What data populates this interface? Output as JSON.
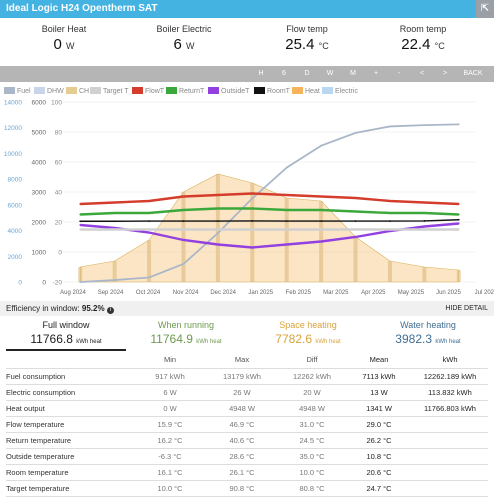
{
  "header": {
    "title": "Ideal Logic H24 Opentherm SAT",
    "expand_icon": "expand-icon"
  },
  "stats": [
    {
      "label": "Boiler Heat",
      "value": "0",
      "unit": "W"
    },
    {
      "label": "Boiler Electric",
      "value": "6",
      "unit": "W"
    },
    {
      "label": "Flow temp",
      "value": "25.4",
      "unit": "°C"
    },
    {
      "label": "Room temp",
      "value": "22.4",
      "unit": "°C"
    }
  ],
  "toolbar": [
    "H",
    "6",
    "D",
    "W",
    "M",
    "+",
    "-",
    "<",
    ">",
    "BACK"
  ],
  "legend": [
    {
      "label": "Fuel",
      "color": "#aab7c8"
    },
    {
      "label": "DHW",
      "color": "#c9d6ea"
    },
    {
      "label": "CH",
      "color": "#e5cd92"
    },
    {
      "label": "Target T",
      "color": "#d0d0d0"
    },
    {
      "label": "FlowT",
      "color": "#d43c2c"
    },
    {
      "label": "ReturnT",
      "color": "#3aa83a"
    },
    {
      "label": "OutsideT",
      "color": "#9240e0"
    },
    {
      "label": "RoomT",
      "color": "#111111"
    },
    {
      "label": "Heat",
      "color": "#f5b45a"
    },
    {
      "label": "Electric",
      "color": "#b9d7f0"
    }
  ],
  "chart_data": {
    "type": "line",
    "x_ticks": [
      "Aug 2024",
      "Sep 2024",
      "Oct 2024",
      "Nov 2024",
      "Dec 2024",
      "Jan 2025",
      "Feb 2025",
      "Mar 2025",
      "Apr 2025",
      "May 2025",
      "Jun 2025",
      "Jul 2025"
    ],
    "y_left_ticks": [
      "0",
      "2000",
      "4000",
      "6000",
      "8000",
      "10000",
      "12000",
      "14000"
    ],
    "y_mid_ticks": [
      "0",
      "1000",
      "2000",
      "3000",
      "4000",
      "5000",
      "6000"
    ],
    "y_right_ticks": [
      "-20",
      "0",
      "20",
      "40",
      "60",
      "80",
      "100"
    ],
    "y_left_range": [
      0,
      14000
    ],
    "y_mid_range": [
      0,
      6000
    ],
    "y_right_range": [
      -20,
      100
    ],
    "series": [
      {
        "name": "Fuel",
        "axis": "left",
        "values": [
          0,
          150,
          350,
          1400,
          3800,
          6500,
          8900,
          10600,
          11600,
          12100,
          12200,
          12262
        ]
      },
      {
        "name": "Heat",
        "axis": "mid",
        "values": [
          500,
          700,
          1400,
          3000,
          3600,
          3300,
          2800,
          2700,
          1500,
          700,
          500,
          400
        ]
      },
      {
        "name": "FlowT",
        "axis": "right",
        "values": [
          32,
          33,
          34,
          37,
          38,
          39,
          38,
          37,
          36,
          34,
          33,
          32
        ]
      },
      {
        "name": "ReturnT",
        "axis": "right",
        "values": [
          25,
          26,
          26,
          28,
          29,
          29,
          28,
          28,
          27,
          26,
          26,
          25
        ]
      },
      {
        "name": "OutsideT",
        "axis": "right",
        "values": [
          18,
          16,
          13,
          8,
          5,
          3,
          5,
          7,
          10,
          14,
          17,
          19
        ]
      },
      {
        "name": "RoomT",
        "axis": "right",
        "values": [
          20.5,
          20.5,
          20.6,
          20.6,
          20.6,
          20.7,
          20.6,
          20.6,
          20.6,
          20.6,
          20.7,
          21.5
        ]
      },
      {
        "name": "Target T",
        "axis": "right",
        "values": [
          15,
          15,
          15,
          15,
          15,
          15,
          15,
          15,
          15,
          15,
          15,
          15
        ]
      }
    ]
  },
  "efficiency": {
    "label": "Efficiency in window:",
    "value": "95.2%",
    "info_icon": "info-icon",
    "hide_label": "HIDE DETAIL"
  },
  "summary": [
    {
      "label": "Full window",
      "value": "11766.8",
      "unit": "kWh heat",
      "color": "#222222"
    },
    {
      "label": "When running",
      "value": "11764.9",
      "unit": "kWh heat",
      "color": "#6f9a4f"
    },
    {
      "label": "Space heating",
      "value": "7782.6",
      "unit": "kWh heat",
      "color": "#d8a33b"
    },
    {
      "label": "Water heating",
      "value": "3982.3",
      "unit": "kWh heat",
      "color": "#3f6d93"
    }
  ],
  "table": {
    "headers": [
      "",
      "Min",
      "Max",
      "Diff",
      "Mean",
      "kWh"
    ],
    "rows": [
      [
        "Fuel consumption",
        "917 kWh",
        "13179 kWh",
        "12262 kWh",
        "7113 kWh",
        "12262.189 kWh"
      ],
      [
        "Electric consumption",
        "6 W",
        "26 W",
        "20 W",
        "13 W",
        "113.832 kWh"
      ],
      [
        "Heat output",
        "0 W",
        "4948 W",
        "4948 W",
        "1341 W",
        "11766.803 kWh"
      ],
      [
        "Flow temperature",
        "15.9 °C",
        "46.9 °C",
        "31.0 °C",
        "29.0 °C",
        ""
      ],
      [
        "Return temperature",
        "16.2 °C",
        "40.6 °C",
        "24.5 °C",
        "26.2 °C",
        ""
      ],
      [
        "Outside temperature",
        "-6.3 °C",
        "28.6 °C",
        "35.0 °C",
        "10.8 °C",
        ""
      ],
      [
        "Room temperature",
        "16.1 °C",
        "26.1 °C",
        "10.0 °C",
        "20.6 °C",
        ""
      ],
      [
        "Target temperature",
        "10.0 °C",
        "90.8 °C",
        "80.8 °C",
        "24.7 °C",
        ""
      ]
    ]
  }
}
